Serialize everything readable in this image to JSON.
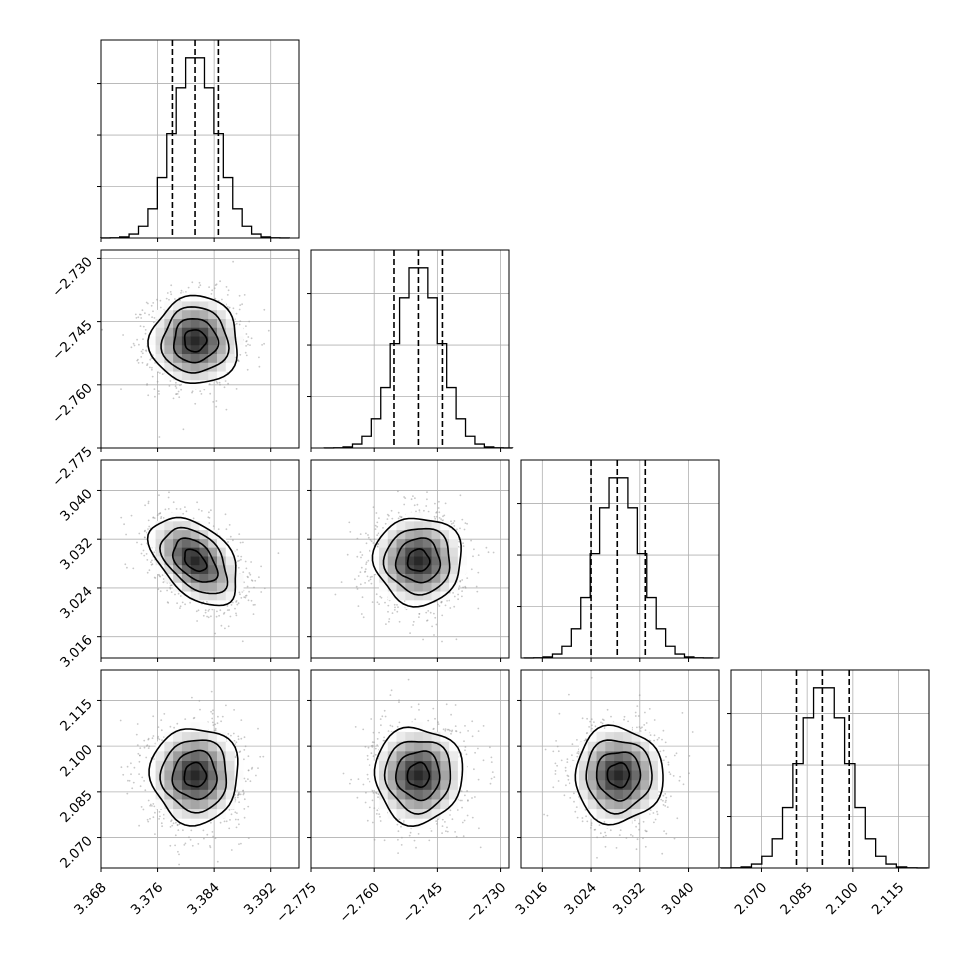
{
  "chart_data": {
    "type": "corner",
    "parameters": [
      {
        "ticks": [
          "3.368",
          "3.376",
          "3.384",
          "3.392"
        ],
        "tick_values": [
          3.368,
          3.376,
          3.384,
          3.392
        ],
        "range": [
          3.368,
          3.396
        ],
        "mean": 3.3813,
        "sigma": 0.0031,
        "quantiles": [
          3.3781,
          3.3813,
          3.3846
        ]
      },
      {
        "ticks": [
          "−2.775",
          "−2.760",
          "−2.745",
          "−2.730"
        ],
        "tick_values": [
          -2.775,
          -2.76,
          -2.745,
          -2.73
        ],
        "range": [
          -2.775,
          -2.728
        ],
        "mean": -2.7495,
        "sigma": 0.0052,
        "quantiles": [
          -2.7553,
          -2.7495,
          -2.7438
        ]
      },
      {
        "ticks": [
          "3.016",
          "3.024",
          "3.032",
          "3.040"
        ],
        "tick_values": [
          3.016,
          3.024,
          3.032,
          3.04
        ],
        "range": [
          3.0125,
          3.045
        ],
        "mean": 3.0285,
        "sigma": 0.0036,
        "quantiles": [
          3.024,
          3.0283,
          3.0329
        ]
      },
      {
        "ticks": [
          "2.070",
          "2.085",
          "2.100",
          "2.115"
        ],
        "tick_values": [
          2.07,
          2.085,
          2.1,
          2.115
        ],
        "range": [
          2.06,
          2.125
        ],
        "mean": 2.0905,
        "sigma": 0.0079,
        "quantiles": [
          2.0815,
          2.09,
          2.0988
        ]
      }
    ],
    "histogram": {
      "bins": 20
    },
    "contours": {
      "levels_sigma": [
        0.5,
        1.0,
        1.5,
        2.0
      ]
    },
    "grid": true,
    "legend": "none"
  }
}
